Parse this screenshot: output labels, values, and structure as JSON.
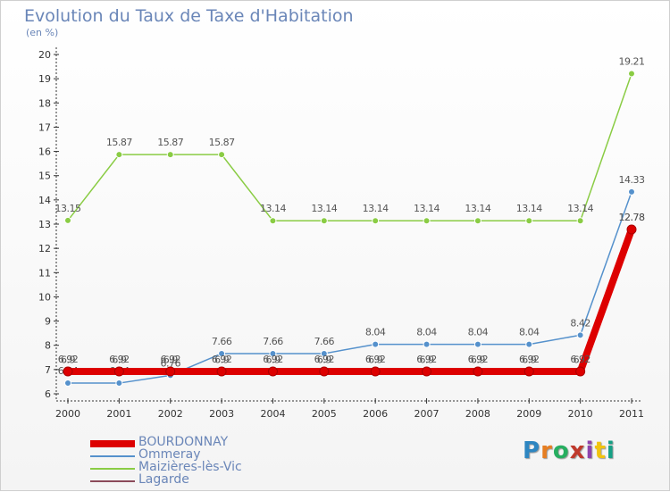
{
  "colors": {
    "BOURDONNAY": "#dd0000",
    "Ommeray": "#5591cc",
    "Maizieres": "#8acc44",
    "Lagarde": "#8b4a5a",
    "axis": "#333333",
    "text": "#6a86b8"
  },
  "logo": {
    "letters": [
      "P",
      "r",
      "o",
      "x",
      "i",
      "t",
      "i"
    ],
    "colors": [
      "#2e86c1",
      "#e67e22",
      "#27ae60",
      "#c0392b",
      "#8e44ad",
      "#f1c40f",
      "#16a085"
    ]
  },
  "chart_data": {
    "type": "line",
    "title": "Evolution du Taux de Taxe d'Habitation",
    "subtitle": "(en %)",
    "x": [
      "2000",
      "2001",
      "2002",
      "2003",
      "2004",
      "2005",
      "2006",
      "2007",
      "2008",
      "2009",
      "2010",
      "2011"
    ],
    "ylim": [
      6,
      20
    ],
    "yticks": [
      "6",
      "7",
      "8",
      "9",
      "10",
      "11",
      "12",
      "13",
      "14",
      "15",
      "16",
      "17",
      "18",
      "19",
      "20"
    ],
    "grid": false,
    "legend": "bottom-left",
    "series": [
      {
        "key": "Lagarde",
        "name": "Lagarde",
        "values": [
          6.9,
          6.9,
          6.9,
          6.9,
          6.9,
          6.9,
          6.9,
          6.9,
          6.9,
          6.9,
          6.9,
          12.78
        ],
        "labels": [
          "6.9",
          "6.9",
          "6.9",
          "6.9",
          "6.9",
          "6.9",
          "6.9",
          "6.9",
          "6.9",
          "6.9",
          "6.9",
          "12.78"
        ]
      },
      {
        "key": "Ommeray",
        "name": "Ommeray",
        "values": [
          6.44,
          6.44,
          6.76,
          7.66,
          7.66,
          7.66,
          8.04,
          8.04,
          8.04,
          8.04,
          8.42,
          14.33
        ],
        "labels": [
          "6.44",
          "6.44",
          "6.76",
          "7.66",
          "7.66",
          "7.66",
          "8.04",
          "8.04",
          "8.04",
          "8.04",
          "8.42",
          "14.33"
        ]
      },
      {
        "key": "Maizieres",
        "name": "Maizières-lès-Vic",
        "values": [
          13.15,
          15.87,
          15.87,
          15.87,
          13.14,
          13.14,
          13.14,
          13.14,
          13.14,
          13.14,
          13.14,
          19.21
        ],
        "labels": [
          "13.15",
          "15.87",
          "15.87",
          "15.87",
          "13.14",
          "13.14",
          "13.14",
          "13.14",
          "13.14",
          "13.14",
          "13.14",
          "19.21"
        ]
      },
      {
        "key": "BOURDONNAY",
        "name": "BOURDONNAY",
        "values": [
          6.92,
          6.92,
          6.92,
          6.92,
          6.92,
          6.92,
          6.92,
          6.92,
          6.92,
          6.92,
          6.92,
          12.78
        ],
        "labels": [
          "6.92",
          "6.92",
          "6.92",
          "6.92",
          "6.92",
          "6.92",
          "6.92",
          "6.92",
          "6.92",
          "6.92",
          "6.92",
          "12.78"
        ]
      }
    ],
    "legend_order": [
      "BOURDONNAY",
      "Ommeray",
      "Maizières-lès-Vic",
      "Lagarde"
    ]
  }
}
